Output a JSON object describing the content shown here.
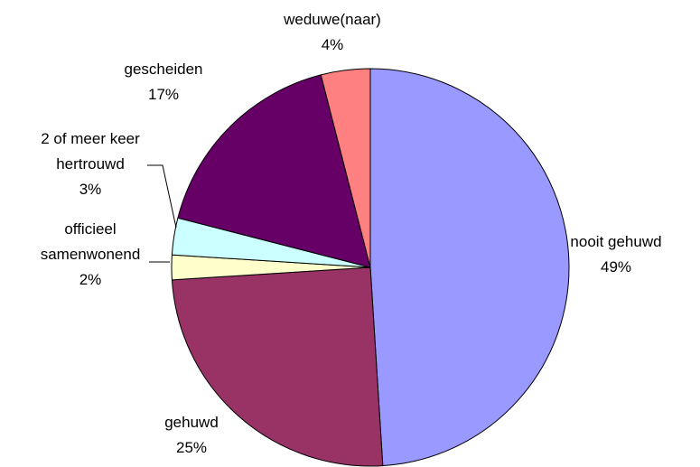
{
  "chart_data": {
    "type": "pie",
    "categories": [
      "nooit gehuwd",
      "gehuwd",
      "officieel samenwonend",
      "2 of meer keer hertrouwd",
      "gescheiden",
      "weduwe(naar)"
    ],
    "values": [
      49,
      25,
      2,
      3,
      17,
      4
    ],
    "value_labels": [
      "49%",
      "25%",
      "2%",
      "3%",
      "17%",
      "4%"
    ],
    "colors": [
      "#9999ff",
      "#993366",
      "#ffffcc",
      "#ccffff",
      "#660066",
      "#ff8080"
    ]
  }
}
